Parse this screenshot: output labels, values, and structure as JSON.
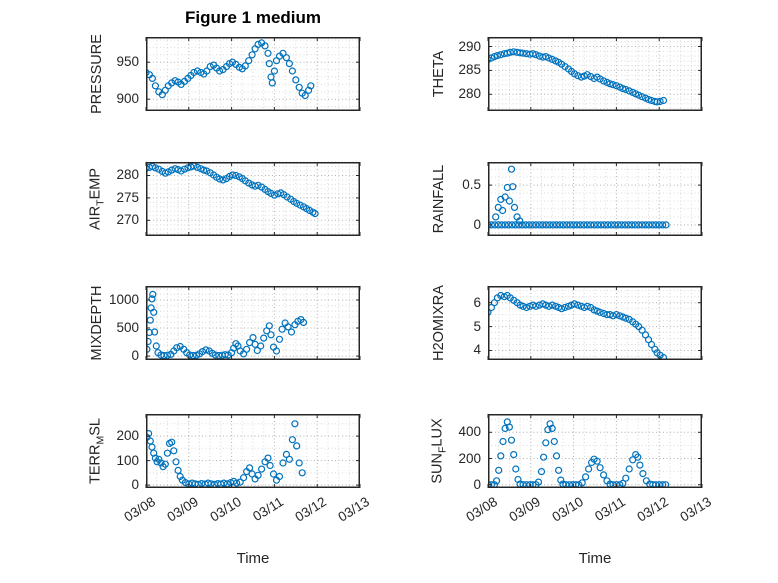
{
  "figure": {
    "title": "Figure 1 medium"
  },
  "axes": {
    "xlabel": "Time",
    "xlim": [
      0,
      5
    ],
    "x_tick_vals": [
      0,
      1,
      2,
      3,
      4,
      5
    ],
    "x_tick_labels": [
      "03/08",
      "03/09",
      "03/10",
      "03/11",
      "03/12",
      "03/13"
    ],
    "x_minor_step": 0.25
  },
  "colors": {
    "marker": "#0072BD",
    "axis": "#262626",
    "grid_major": "#b0b0b0",
    "grid_minor": "#d9d9d9",
    "background": "#ffffff"
  },
  "chart_data": [
    {
      "type": "scatter",
      "id": "pressure",
      "ylabel": {
        "pre": "PRESSURE",
        "sub": "",
        "post": ""
      },
      "ylim": [
        884,
        984
      ],
      "ytick_vals": [
        900,
        950
      ],
      "ytick_labels": [
        "900",
        "950"
      ],
      "yminor": 10,
      "x": [
        0,
        0.08,
        0.15,
        0.22,
        0.3,
        0.38,
        0.45,
        0.52,
        0.6,
        0.68,
        0.75,
        0.82,
        0.9,
        0.98,
        1.05,
        1.12,
        1.2,
        1.28,
        1.35,
        1.42,
        1.5,
        1.58,
        1.65,
        1.72,
        1.8,
        1.88,
        1.95,
        2.02,
        2.1,
        2.18,
        2.25,
        2.32,
        2.4,
        2.48,
        2.55,
        2.62,
        2.7,
        2.78,
        2.85,
        2.88,
        2.92,
        2.95,
        3,
        3.05,
        3.12,
        3.2,
        3.28,
        3.35,
        3.42,
        3.5,
        3.58,
        3.65,
        3.72,
        3.8,
        3.85
      ],
      "y": [
        936,
        933,
        928,
        918,
        910,
        906,
        912,
        918,
        922,
        925,
        923,
        920,
        924,
        928,
        932,
        936,
        938,
        936,
        934,
        938,
        944,
        946,
        942,
        938,
        940,
        944,
        948,
        950,
        947,
        943,
        941,
        945,
        952,
        960,
        968,
        974,
        976,
        972,
        962,
        948,
        930,
        922,
        938,
        952,
        958,
        962,
        956,
        948,
        938,
        926,
        916,
        908,
        905,
        912,
        918
      ]
    },
    {
      "type": "scatter",
      "id": "theta",
      "ylabel": {
        "pre": "THETA",
        "sub": "",
        "post": ""
      },
      "ylim": [
        276.5,
        292
      ],
      "ytick_vals": [
        280,
        285,
        290
      ],
      "ytick_labels": [
        "280",
        "285",
        "290"
      ],
      "yminor": 1,
      "x": [
        0,
        0.08,
        0.15,
        0.22,
        0.3,
        0.38,
        0.45,
        0.52,
        0.6,
        0.68,
        0.75,
        0.82,
        0.9,
        0.98,
        1.05,
        1.12,
        1.2,
        1.28,
        1.35,
        1.42,
        1.5,
        1.58,
        1.65,
        1.72,
        1.8,
        1.88,
        1.95,
        2.02,
        2.1,
        2.18,
        2.25,
        2.32,
        2.4,
        2.48,
        2.55,
        2.62,
        2.7,
        2.78,
        2.85,
        2.92,
        3,
        3.08,
        3.15,
        3.22,
        3.3,
        3.38,
        3.45,
        3.52,
        3.6,
        3.68,
        3.75,
        3.82,
        3.9,
        3.95,
        4.02,
        4.1
      ],
      "y": [
        287.3,
        287.6,
        287.9,
        288.1,
        288.3,
        288.5,
        288.6,
        288.8,
        288.9,
        288.8,
        288.7,
        288.6,
        288.5,
        288.4,
        288.5,
        288.3,
        288,
        287.8,
        287.9,
        287.6,
        287.3,
        287,
        286.7,
        286.3,
        285.8,
        285.3,
        284.8,
        284.3,
        283.9,
        283.6,
        283.8,
        284.1,
        283.7,
        283.3,
        283.6,
        283.2,
        282.8,
        282.5,
        282.2,
        282,
        281.8,
        281.5,
        281.2,
        281,
        280.7,
        280.4,
        280.1,
        279.8,
        279.5,
        279.2,
        278.9,
        278.7,
        278.5,
        278.4,
        278.5,
        278.7
      ]
    },
    {
      "type": "scatter",
      "id": "air-temp",
      "ylabel": {
        "pre": "AIR",
        "sub": "T",
        "post": "EMP"
      },
      "ylim": [
        266.5,
        283
      ],
      "ytick_vals": [
        270,
        275,
        280
      ],
      "ytick_labels": [
        "270",
        "275",
        "280"
      ],
      "yminor": 1,
      "x": [
        0,
        0.08,
        0.15,
        0.22,
        0.3,
        0.38,
        0.45,
        0.52,
        0.6,
        0.68,
        0.75,
        0.82,
        0.9,
        0.98,
        1.05,
        1.12,
        1.2,
        1.28,
        1.35,
        1.42,
        1.5,
        1.58,
        1.65,
        1.72,
        1.8,
        1.88,
        1.95,
        2.02,
        2.1,
        2.18,
        2.25,
        2.32,
        2.4,
        2.48,
        2.55,
        2.62,
        2.7,
        2.78,
        2.85,
        2.92,
        3,
        3.08,
        3.15,
        3.22,
        3.3,
        3.38,
        3.45,
        3.52,
        3.6,
        3.68,
        3.75,
        3.82,
        3.9,
        3.95
      ],
      "y": [
        281.6,
        281.8,
        282,
        281.7,
        281.4,
        280.9,
        280.5,
        280.8,
        281.2,
        281.5,
        281.3,
        281,
        281.4,
        281.7,
        281.9,
        282.1,
        281.8,
        281.5,
        281.2,
        281,
        280.6,
        280.1,
        279.6,
        279.2,
        279,
        279.3,
        279.8,
        280.1,
        280,
        279.7,
        279.3,
        278.8,
        278.3,
        277.9,
        277.6,
        277.8,
        277.4,
        276.9,
        276.4,
        276,
        275.6,
        275.9,
        276.1,
        275.7,
        275.2,
        274.7,
        274.2,
        273.8,
        273.4,
        273,
        272.6,
        272.2,
        271.8,
        271.5
      ]
    },
    {
      "type": "scatter",
      "id": "rainfall",
      "ylabel": {
        "pre": "RAINFALL",
        "sub": "",
        "post": ""
      },
      "ylim": [
        -0.14,
        0.79
      ],
      "ytick_vals": [
        0,
        0.5
      ],
      "ytick_labels": [
        "0",
        "0.5"
      ],
      "yminor": 0.1,
      "x": [
        0,
        0.08,
        0.16,
        0.24,
        0.32,
        0.4,
        0.48,
        0.56,
        0.64,
        0.72,
        0.8,
        0.88,
        0.96,
        1.04,
        1.12,
        1.2,
        1.28,
        1.36,
        1.44,
        1.52,
        1.6,
        1.68,
        1.76,
        1.84,
        1.92,
        2,
        2.08,
        2.16,
        2.24,
        2.32,
        2.4,
        2.48,
        2.56,
        2.64,
        2.72,
        2.8,
        2.88,
        2.96,
        3.04,
        3.12,
        3.2,
        3.28,
        3.36,
        3.44,
        3.52,
        3.6,
        3.68,
        3.76,
        3.84,
        3.92,
        4,
        4.08,
        4.16,
        0.18,
        0.24,
        0.3,
        0.34,
        0.4,
        0.45,
        0.5,
        0.55,
        0.58,
        0.62,
        0.68,
        0.74
      ],
      "y": [
        0,
        0,
        0,
        0,
        0,
        0,
        0,
        0,
        0,
        0,
        0,
        0,
        0,
        0,
        0,
        0,
        0,
        0,
        0,
        0,
        0,
        0,
        0,
        0,
        0,
        0,
        0,
        0,
        0,
        0,
        0,
        0,
        0,
        0,
        0,
        0,
        0,
        0,
        0,
        0,
        0,
        0,
        0,
        0,
        0,
        0,
        0,
        0,
        0,
        0,
        0,
        0,
        0,
        0.1,
        0.22,
        0.32,
        0.18,
        0.35,
        0.47,
        0.3,
        0.7,
        0.48,
        0.22,
        0.1,
        0.05
      ]
    },
    {
      "type": "scatter",
      "id": "mixdepth",
      "ylabel": {
        "pre": "MIXDEPTH",
        "sub": "",
        "post": ""
      },
      "ylim": [
        -70,
        1250
      ],
      "ytick_vals": [
        0,
        500,
        1000
      ],
      "ytick_labels": [
        "0",
        "500",
        "1000"
      ],
      "yminor": 100,
      "x": [
        0.02,
        0.05,
        0.08,
        0.1,
        0.12,
        0.14,
        0.16,
        0.18,
        0.2,
        0.24,
        0.28,
        0.35,
        0.42,
        0.5,
        0.58,
        0.65,
        0.72,
        0.8,
        0.88,
        0.95,
        1.02,
        1.1,
        1.18,
        1.25,
        1.32,
        1.4,
        1.48,
        1.55,
        1.62,
        1.7,
        1.78,
        1.85,
        1.92,
        2,
        2.05,
        2.1,
        2.15,
        2.2,
        2.28,
        2.35,
        2.42,
        2.5,
        2.55,
        2.6,
        2.68,
        2.75,
        2.82,
        2.88,
        2.92,
        2.98,
        3.05,
        3.12,
        3.18,
        3.25,
        3.32,
        3.4,
        3.48,
        3.55,
        3.62,
        3.68
      ],
      "y": [
        120,
        260,
        420,
        640,
        860,
        1020,
        1100,
        780,
        430,
        180,
        60,
        20,
        10,
        15,
        30,
        90,
        150,
        170,
        120,
        60,
        20,
        10,
        15,
        40,
        80,
        110,
        90,
        50,
        20,
        10,
        15,
        25,
        20,
        60,
        140,
        220,
        180,
        90,
        40,
        120,
        240,
        330,
        210,
        100,
        180,
        320,
        450,
        540,
        380,
        160,
        90,
        300,
        480,
        590,
        520,
        430,
        560,
        620,
        650,
        600
      ]
    },
    {
      "type": "scatter",
      "id": "h2omixra",
      "ylabel": {
        "pre": "H2OMIXRA",
        "sub": "",
        "post": ""
      },
      "ylim": [
        3.6,
        6.7
      ],
      "ytick_vals": [
        4,
        5,
        6
      ],
      "ytick_labels": [
        "4",
        "5",
        "6"
      ],
      "yminor": 0.25,
      "x": [
        0,
        0.08,
        0.15,
        0.22,
        0.3,
        0.38,
        0.45,
        0.52,
        0.6,
        0.68,
        0.75,
        0.82,
        0.9,
        0.98,
        1.05,
        1.12,
        1.2,
        1.28,
        1.35,
        1.42,
        1.5,
        1.58,
        1.65,
        1.72,
        1.8,
        1.88,
        1.95,
        2.02,
        2.1,
        2.18,
        2.25,
        2.32,
        2.4,
        2.48,
        2.55,
        2.62,
        2.7,
        2.78,
        2.85,
        2.92,
        3,
        3.08,
        3.15,
        3.22,
        3.3,
        3.38,
        3.45,
        3.52,
        3.6,
        3.68,
        3.75,
        3.82,
        3.9,
        3.95,
        4.02,
        4.1
      ],
      "y": [
        5.6,
        5.8,
        6,
        6.2,
        6.3,
        6.25,
        6.3,
        6.2,
        6.1,
        6,
        5.9,
        5.85,
        5.8,
        5.85,
        5.9,
        5.85,
        5.9,
        5.95,
        5.9,
        5.85,
        5.9,
        5.85,
        5.8,
        5.75,
        5.8,
        5.85,
        5.9,
        5.95,
        5.9,
        5.85,
        5.8,
        5.85,
        5.8,
        5.7,
        5.65,
        5.6,
        5.55,
        5.5,
        5.5,
        5.45,
        5.5,
        5.45,
        5.4,
        5.35,
        5.3,
        5.2,
        5.1,
        5,
        4.85,
        4.65,
        4.45,
        4.25,
        4.05,
        3.9,
        3.8,
        3.7
      ]
    },
    {
      "type": "scatter",
      "id": "terr-msl",
      "ylabel": {
        "pre": "TERR",
        "sub": "M",
        "post": "SL"
      },
      "ylim": [
        -12,
        290
      ],
      "ytick_vals": [
        0,
        100,
        200
      ],
      "ytick_labels": [
        "0",
        "100",
        "200"
      ],
      "yminor": 50,
      "x": [
        0.02,
        0.06,
        0.1,
        0.14,
        0.18,
        0.22,
        0.26,
        0.3,
        0.35,
        0.4,
        0.45,
        0.5,
        0.55,
        0.6,
        0.65,
        0.7,
        0.75,
        0.8,
        0.85,
        0.92,
        1,
        1.08,
        1.15,
        1.22,
        1.3,
        1.38,
        1.45,
        1.52,
        1.6,
        1.68,
        1.75,
        1.82,
        1.9,
        1.98,
        2.05,
        2.12,
        2.2,
        2.28,
        2.35,
        2.42,
        2.48,
        2.55,
        2.62,
        2.7,
        2.78,
        2.85,
        2.9,
        2.98,
        3.05,
        3.12,
        3.2,
        3.28,
        3.35,
        3.42,
        3.48,
        3.52,
        3.58,
        3.65
      ],
      "y": [
        195,
        210,
        180,
        155,
        130,
        110,
        95,
        105,
        90,
        75,
        85,
        130,
        170,
        175,
        140,
        95,
        60,
        35,
        20,
        10,
        5,
        8,
        5,
        3,
        6,
        4,
        8,
        5,
        3,
        6,
        4,
        8,
        5,
        10,
        15,
        8,
        12,
        30,
        55,
        70,
        45,
        25,
        40,
        65,
        95,
        110,
        80,
        45,
        20,
        35,
        90,
        125,
        105,
        185,
        250,
        160,
        90,
        50
      ]
    },
    {
      "type": "scatter",
      "id": "sun-flux",
      "ylabel": {
        "pre": "SUN",
        "sub": "F",
        "post": "LUX"
      },
      "ylim": [
        -25,
        540
      ],
      "ytick_vals": [
        0,
        200,
        400
      ],
      "ytick_labels": [
        "0",
        "200",
        "400"
      ],
      "yminor": 100,
      "x": [
        0,
        0.08,
        0.15,
        0.2,
        0.25,
        0.3,
        0.35,
        0.4,
        0.45,
        0.5,
        0.55,
        0.6,
        0.65,
        0.7,
        0.75,
        0.82,
        0.9,
        0.98,
        1.05,
        1.12,
        1.18,
        1.25,
        1.3,
        1.35,
        1.4,
        1.45,
        1.5,
        1.55,
        1.6,
        1.65,
        1.7,
        1.75,
        1.82,
        1.9,
        1.98,
        2.05,
        2.12,
        2.2,
        2.28,
        2.35,
        2.42,
        2.48,
        2.55,
        2.62,
        2.7,
        2.78,
        2.85,
        2.92,
        3,
        3.08,
        3.15,
        3.22,
        3.3,
        3.38,
        3.45,
        3.5,
        3.55,
        3.62,
        3.7,
        3.78,
        3.85,
        3.92,
        4,
        4.08,
        4.15
      ],
      "y": [
        0,
        0,
        0,
        30,
        110,
        220,
        330,
        430,
        480,
        440,
        340,
        230,
        120,
        40,
        5,
        0,
        0,
        0,
        0,
        0,
        20,
        100,
        210,
        320,
        420,
        465,
        430,
        330,
        220,
        110,
        35,
        5,
        0,
        0,
        0,
        0,
        0,
        15,
        60,
        120,
        170,
        195,
        180,
        130,
        75,
        30,
        5,
        0,
        0,
        0,
        10,
        50,
        120,
        190,
        230,
        210,
        150,
        85,
        30,
        5,
        0,
        0,
        0,
        0,
        0
      ]
    }
  ]
}
